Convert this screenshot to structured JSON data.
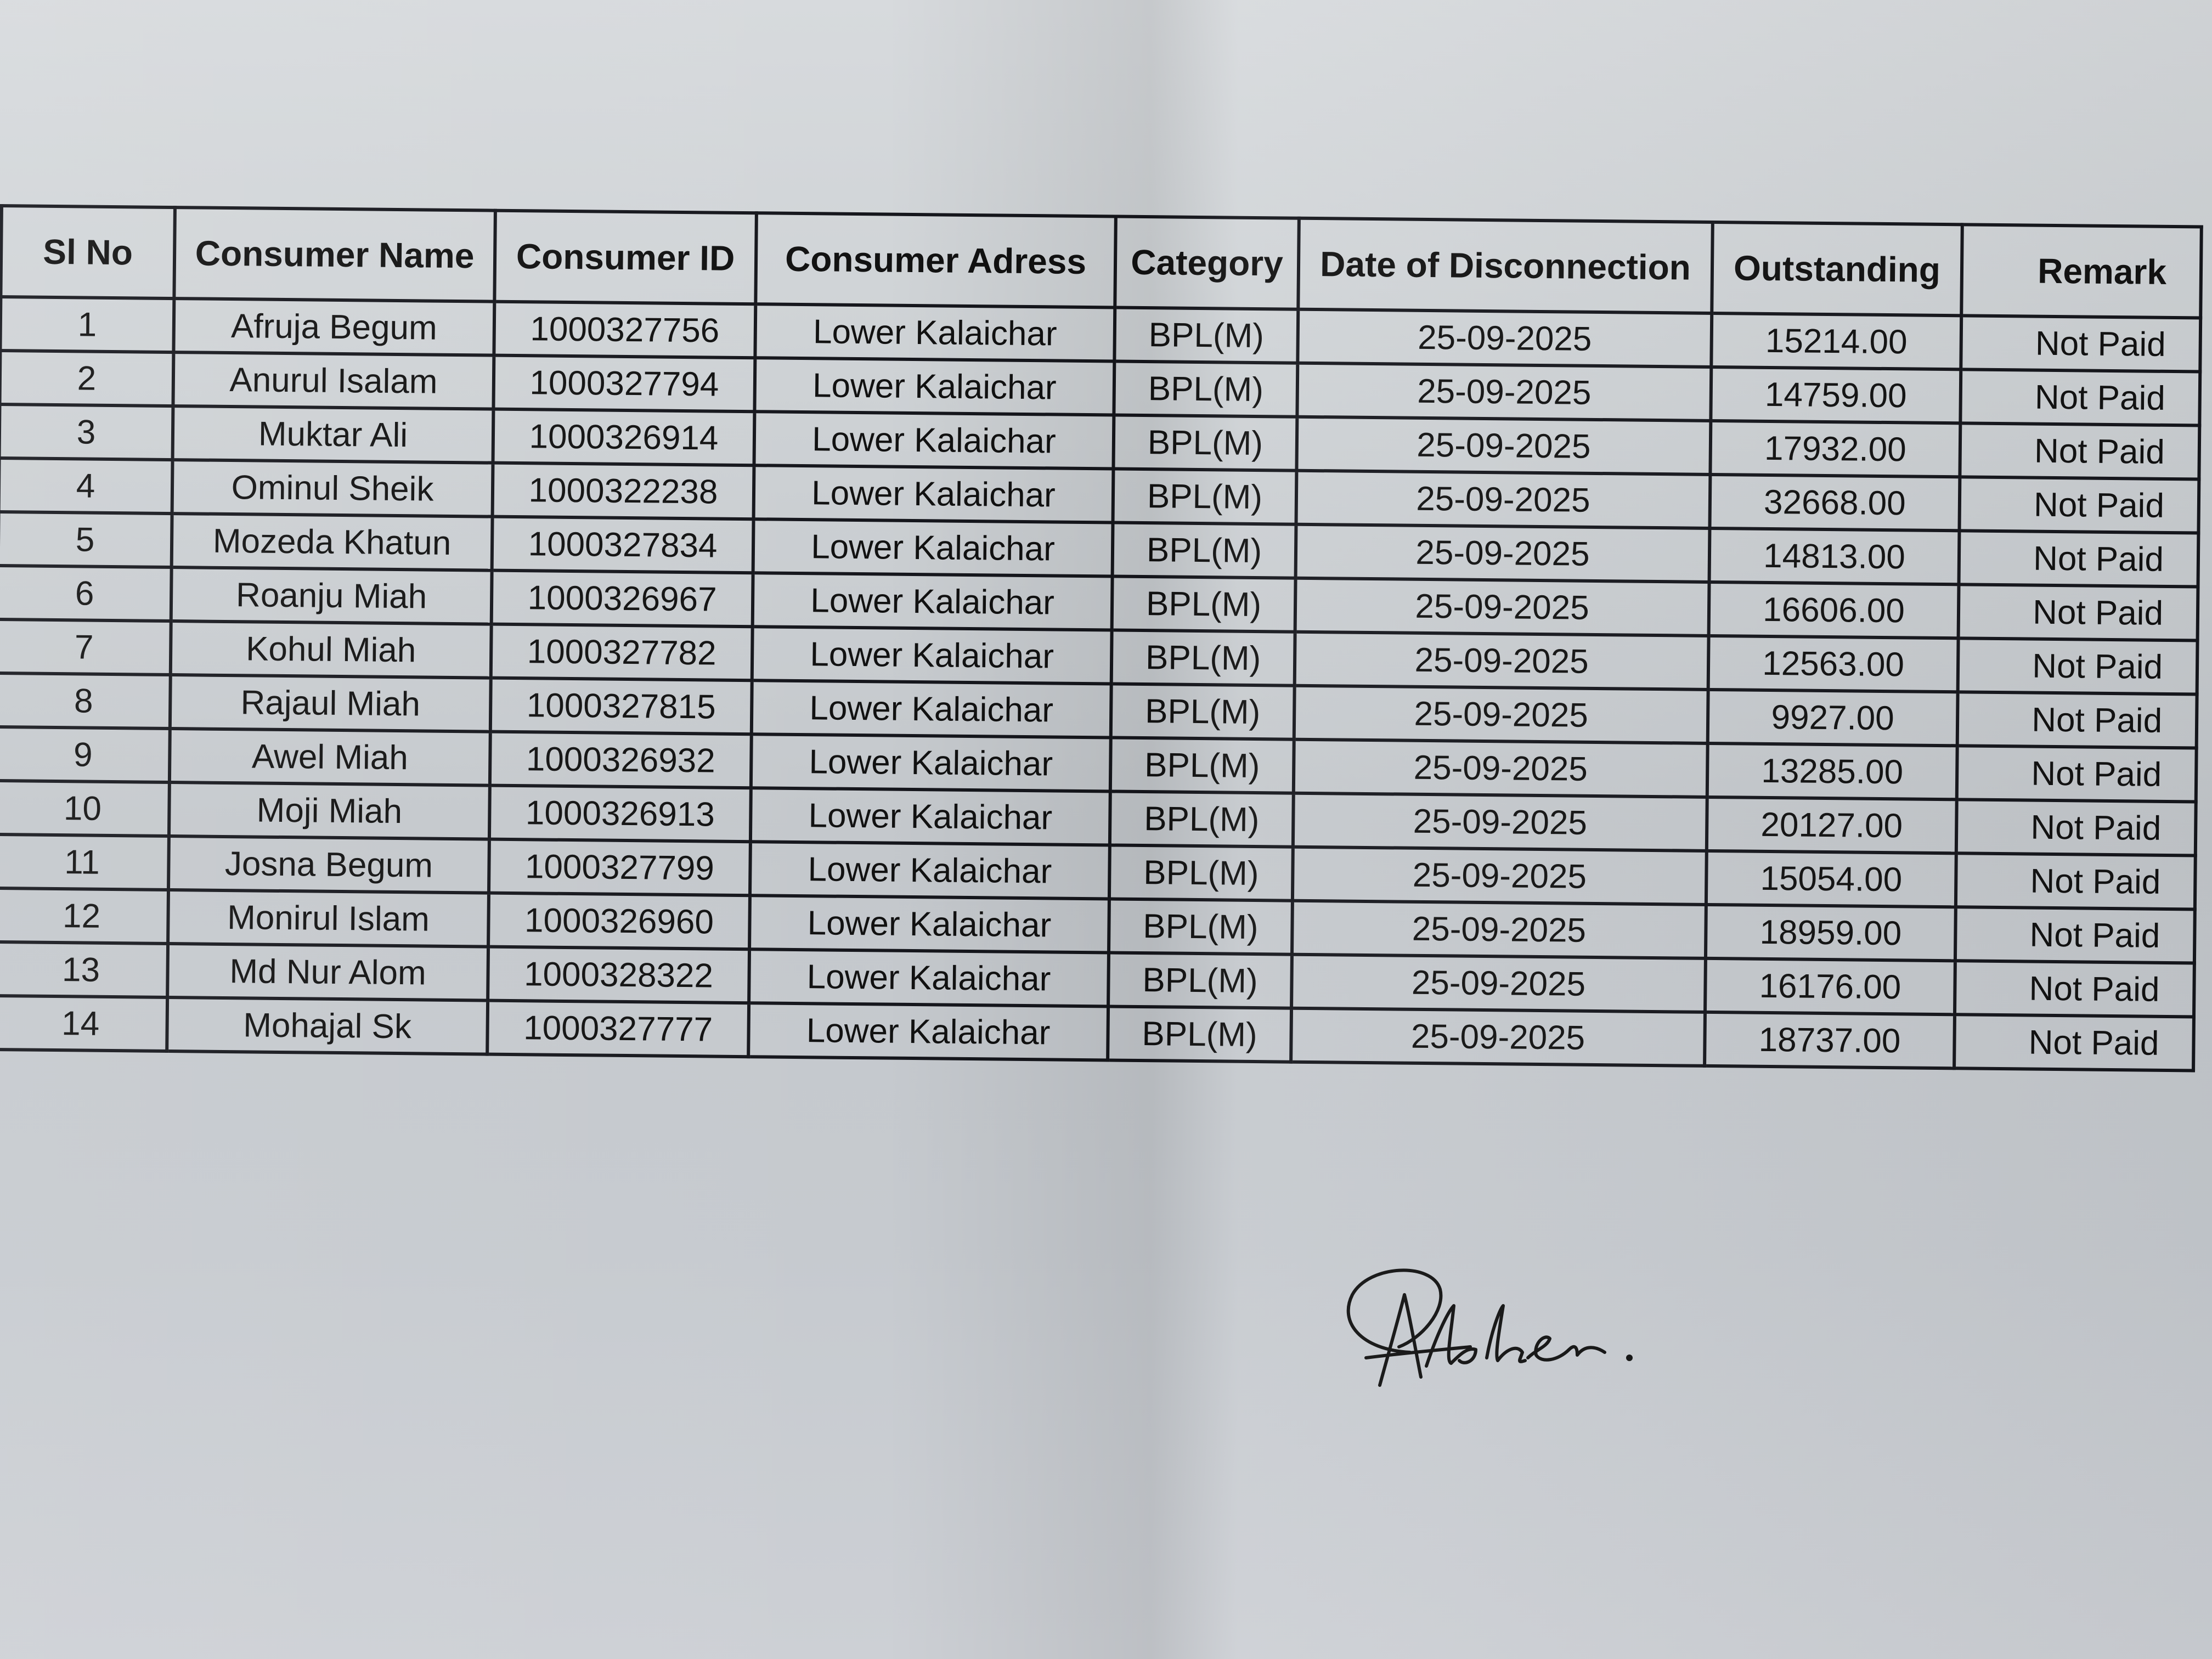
{
  "table": {
    "headers": [
      "Sl No",
      "Consumer Name",
      "Consumer ID",
      "Consumer Adress",
      "Category",
      "Date of Disconnection",
      "Outstanding",
      "Remark"
    ],
    "rows": [
      [
        "1",
        "Afruja Begum",
        "1000327756",
        "Lower Kalaichar",
        "BPL(M)",
        "25-09-2025",
        "15214.00",
        "Not Paid"
      ],
      [
        "2",
        "Anurul Isalam",
        "1000327794",
        "Lower Kalaichar",
        "BPL(M)",
        "25-09-2025",
        "14759.00",
        "Not Paid"
      ],
      [
        "3",
        "Muktar Ali",
        "1000326914",
        "Lower Kalaichar",
        "BPL(M)",
        "25-09-2025",
        "17932.00",
        "Not Paid"
      ],
      [
        "4",
        "Ominul Sheik",
        "1000322238",
        "Lower Kalaichar",
        "BPL(M)",
        "25-09-2025",
        "32668.00",
        "Not Paid"
      ],
      [
        "5",
        "Mozeda Khatun",
        "1000327834",
        "Lower Kalaichar",
        "BPL(M)",
        "25-09-2025",
        "14813.00",
        "Not Paid"
      ],
      [
        "6",
        "Roanju Miah",
        "1000326967",
        "Lower Kalaichar",
        "BPL(M)",
        "25-09-2025",
        "16606.00",
        "Not Paid"
      ],
      [
        "7",
        "Kohul Miah",
        "1000327782",
        "Lower Kalaichar",
        "BPL(M)",
        "25-09-2025",
        "12563.00",
        "Not Paid"
      ],
      [
        "8",
        "Rajaul Miah",
        "1000327815",
        "Lower Kalaichar",
        "BPL(M)",
        "25-09-2025",
        "9927.00",
        "Not Paid"
      ],
      [
        "9",
        "Awel Miah",
        "1000326932",
        "Lower Kalaichar",
        "BPL(M)",
        "25-09-2025",
        "13285.00",
        "Not Paid"
      ],
      [
        "10",
        "Moji Miah",
        "1000326913",
        "Lower Kalaichar",
        "BPL(M)",
        "25-09-2025",
        "20127.00",
        "Not Paid"
      ],
      [
        "11",
        "Josna Begum",
        "1000327799",
        "Lower Kalaichar",
        "BPL(M)",
        "25-09-2025",
        "15054.00",
        "Not Paid"
      ],
      [
        "12",
        "Monirul Islam",
        "1000326960",
        "Lower Kalaichar",
        "BPL(M)",
        "25-09-2025",
        "18959.00",
        "Not Paid"
      ],
      [
        "13",
        "Md Nur Alom",
        "1000328322",
        "Lower Kalaichar",
        "BPL(M)",
        "25-09-2025",
        "16176.00",
        "Not Paid"
      ],
      [
        "14",
        "Mohajal Sk",
        "1000327777",
        "Lower Kalaichar",
        "BPL(M)",
        "25-09-2025",
        "18737.00",
        "Not Paid"
      ]
    ]
  },
  "signature": {
    "icon": "handwritten-signature"
  },
  "colors": {
    "paper": "#cdd0d4",
    "ink": "#111111"
  }
}
